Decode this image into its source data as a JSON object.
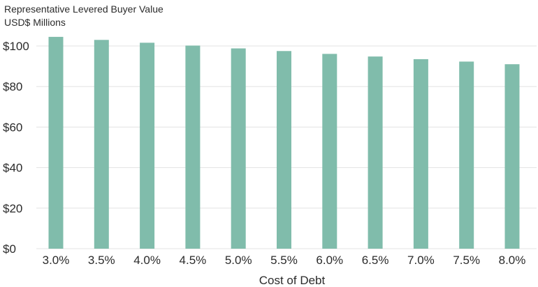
{
  "chart_data": {
    "type": "bar",
    "title": "Representative Levered Buyer Value",
    "subtitle": "USD$ Millions",
    "xlabel": "Cost of Debt",
    "ylabel": "",
    "categories": [
      "3.0%",
      "3.5%",
      "4.0%",
      "4.5%",
      "5.0%",
      "5.5%",
      "6.0%",
      "6.5%",
      "7.0%",
      "7.5%",
      "8.0%"
    ],
    "values": [
      104.5,
      103.0,
      101.6,
      100.2,
      98.8,
      97.5,
      96.1,
      94.8,
      93.5,
      92.3,
      91.0
    ],
    "ylim": [
      0,
      100
    ],
    "yticks": [
      0,
      20,
      40,
      60,
      80,
      100
    ],
    "ytick_labels": [
      "$0",
      "$20",
      "$40",
      "$60",
      "$80",
      "$100"
    ],
    "grid": true,
    "bar_color": "#80bcab",
    "grid_color": "#e3e3e3"
  }
}
